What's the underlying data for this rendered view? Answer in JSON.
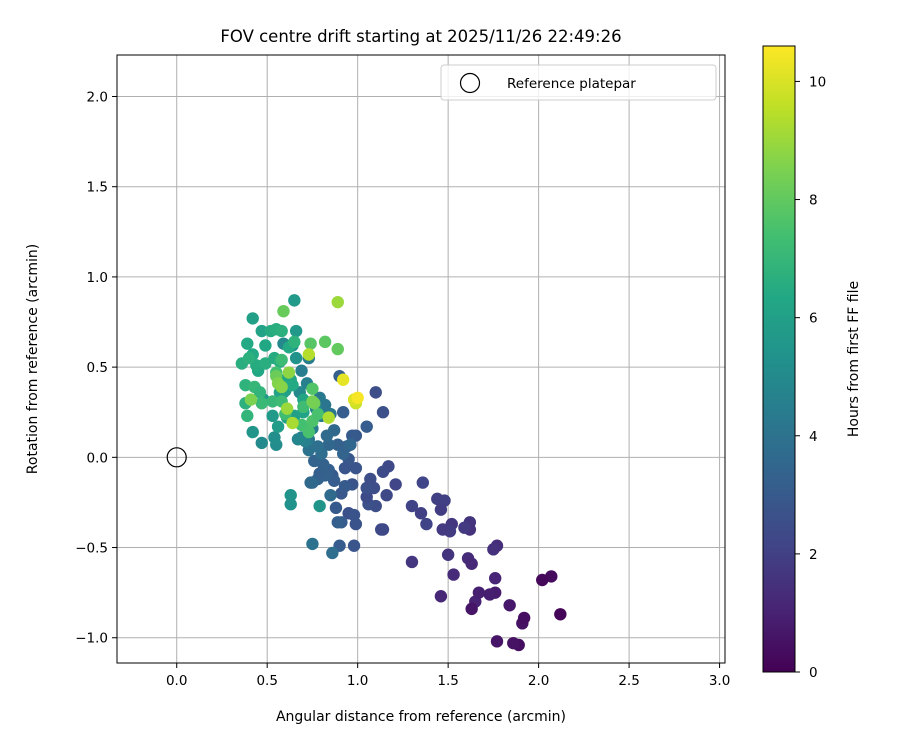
{
  "chart_data": {
    "type": "scatter",
    "title": "FOV centre drift starting at 2025/11/26 22:49:26",
    "xlabel": "Angular distance from reference (arcmin)",
    "ylabel": "Rotation from reference (arcmin)",
    "xlim": [
      -0.33,
      3.03
    ],
    "ylim": [
      -1.14,
      2.23
    ],
    "xticks": [
      0.0,
      0.5,
      1.0,
      1.5,
      2.0,
      2.5,
      3.0
    ],
    "xtick_labels": [
      "0.0",
      "0.5",
      "1.0",
      "1.5",
      "2.0",
      "2.5",
      "3.0"
    ],
    "yticks": [
      -1.0,
      -0.5,
      0.0,
      0.5,
      1.0,
      1.5,
      2.0
    ],
    "ytick_labels": [
      "−1.0",
      "−0.5",
      "0.0",
      "0.5",
      "1.0",
      "1.5",
      "2.0"
    ],
    "grid": true,
    "legend": {
      "position": "top-right",
      "label": "Reference platepar"
    },
    "reference_point": {
      "x": 0.0,
      "y": 0.0
    },
    "colorbar": {
      "label": "Hours from first FF file",
      "range": [
        0,
        10.6
      ],
      "ticks": [
        0,
        2,
        4,
        6,
        8,
        10
      ],
      "tick_labels": [
        "0",
        "2",
        "4",
        "6",
        "8",
        "10"
      ],
      "colormap": "viridis"
    },
    "series": [
      {
        "name": "FOV centre",
        "columns": [
          "x",
          "y",
          "hours"
        ],
        "points": [
          [
            2.12,
            -0.87,
            0.1
          ],
          [
            2.07,
            -0.66,
            0.3
          ],
          [
            2.02,
            -0.68,
            0.2
          ],
          [
            1.89,
            -1.04,
            0.4
          ],
          [
            1.86,
            -1.03,
            0.5
          ],
          [
            1.77,
            -1.02,
            0.6
          ],
          [
            1.91,
            -0.92,
            0.5
          ],
          [
            1.92,
            -0.89,
            0.4
          ],
          [
            1.84,
            -0.82,
            0.7
          ],
          [
            1.76,
            -0.75,
            0.8
          ],
          [
            1.73,
            -0.76,
            0.9
          ],
          [
            1.65,
            -0.8,
            1.0
          ],
          [
            1.67,
            -0.75,
            0.9
          ],
          [
            1.76,
            -0.67,
            1.1
          ],
          [
            1.63,
            -0.84,
            0.6
          ],
          [
            1.46,
            -0.77,
            1.2
          ],
          [
            1.53,
            -0.65,
            1.3
          ],
          [
            1.61,
            -0.56,
            1.3
          ],
          [
            1.63,
            -0.59,
            1.2
          ],
          [
            1.77,
            -0.49,
            1.4
          ],
          [
            1.75,
            -0.51,
            1.5
          ],
          [
            1.5,
            -0.54,
            1.6
          ],
          [
            1.3,
            -0.58,
            1.7
          ],
          [
            1.62,
            -0.36,
            1.6
          ],
          [
            1.62,
            -0.4,
            1.5
          ],
          [
            1.59,
            -0.39,
            1.8
          ],
          [
            1.52,
            -0.37,
            1.7
          ],
          [
            1.51,
            -0.41,
            1.9
          ],
          [
            1.47,
            -0.4,
            1.8
          ],
          [
            1.48,
            -0.24,
            2.0
          ],
          [
            1.46,
            -0.29,
            1.9
          ],
          [
            1.44,
            -0.23,
            2.0
          ],
          [
            1.38,
            -0.37,
            2.1
          ],
          [
            1.35,
            -0.31,
            2.0
          ],
          [
            1.3,
            -0.27,
            2.1
          ],
          [
            1.36,
            -0.14,
            2.2
          ],
          [
            1.21,
            -0.15,
            2.2
          ],
          [
            1.17,
            -0.05,
            2.3
          ],
          [
            1.14,
            -0.08,
            2.4
          ],
          [
            1.16,
            -0.21,
            2.3
          ],
          [
            1.13,
            -0.4,
            2.4
          ],
          [
            1.14,
            -0.4,
            2.3
          ],
          [
            1.1,
            -0.27,
            2.5
          ],
          [
            1.09,
            -0.17,
            2.5
          ],
          [
            1.06,
            -0.26,
            2.6
          ],
          [
            1.05,
            -0.22,
            2.4
          ],
          [
            1.05,
            -0.17,
            2.6
          ],
          [
            1.07,
            -0.12,
            2.5
          ],
          [
            0.99,
            -0.37,
            2.7
          ],
          [
            0.98,
            -0.49,
            2.8
          ],
          [
            0.95,
            -0.31,
            2.6
          ],
          [
            0.98,
            -0.32,
            2.7
          ],
          [
            0.97,
            -0.15,
            2.7
          ],
          [
            0.99,
            -0.06,
            2.8
          ],
          [
            0.95,
            -0.01,
            2.9
          ],
          [
            0.93,
            -0.06,
            2.8
          ],
          [
            0.91,
            -0.2,
            2.9
          ],
          [
            0.93,
            -0.16,
            3.0
          ],
          [
            0.88,
            -0.28,
            3.0
          ],
          [
            0.91,
            -0.36,
            3.1
          ],
          [
            0.89,
            -0.36,
            3.2
          ],
          [
            0.9,
            -0.49,
            3.1
          ],
          [
            0.86,
            -0.1,
            3.0
          ],
          [
            0.87,
            -0.13,
            3.1
          ],
          [
            0.84,
            -0.07,
            3.2
          ],
          [
            0.81,
            -0.04,
            3.3
          ],
          [
            0.78,
            -0.12,
            3.4
          ],
          [
            0.82,
            -0.1,
            3.3
          ],
          [
            0.79,
            -0.09,
            3.2
          ],
          [
            0.75,
            -0.14,
            3.5
          ],
          [
            0.76,
            -0.02,
            3.4
          ],
          [
            0.74,
            -0.14,
            3.6
          ],
          [
            0.85,
            -0.21,
            3.7
          ],
          [
            0.86,
            -0.53,
            3.8
          ],
          [
            0.75,
            -0.48,
            4.0
          ],
          [
            0.99,
            0.12,
            2.9
          ],
          [
            0.97,
            0.12,
            3.0
          ],
          [
            1.05,
            0.17,
            3.1
          ],
          [
            1.1,
            0.36,
            2.5
          ],
          [
            1.14,
            0.25,
            2.6
          ],
          [
            0.9,
            0.45,
            3.2
          ],
          [
            0.92,
            0.25,
            3.1
          ],
          [
            0.89,
            0.07,
            3.3
          ],
          [
            0.92,
            0.02,
            3.4
          ],
          [
            0.94,
            0.06,
            3.3
          ],
          [
            0.96,
            0.07,
            3.5
          ],
          [
            0.87,
            0.15,
            3.6
          ],
          [
            0.84,
            0.07,
            3.5
          ],
          [
            0.83,
            0.12,
            3.7
          ],
          [
            0.8,
            0.02,
            3.8
          ],
          [
            0.78,
            0.06,
            3.9
          ],
          [
            0.73,
            0.04,
            4.0
          ],
          [
            0.73,
            0.1,
            4.1
          ],
          [
            0.85,
            0.24,
            4.2
          ],
          [
            0.82,
            0.29,
            4.1
          ],
          [
            0.79,
            0.33,
            4.3
          ],
          [
            0.8,
            0.23,
            4.4
          ],
          [
            0.75,
            0.16,
            4.5
          ],
          [
            0.71,
            0.09,
            4.6
          ],
          [
            0.69,
            0.11,
            4.7
          ],
          [
            0.67,
            0.1,
            4.8
          ],
          [
            0.77,
            0.27,
            4.7
          ],
          [
            0.72,
            0.41,
            4.6
          ],
          [
            0.68,
            0.36,
            4.9
          ],
          [
            0.69,
            0.48,
            4.5
          ],
          [
            0.73,
            0.55,
            4.4
          ],
          [
            0.59,
            0.63,
            4.9
          ],
          [
            0.47,
            0.08,
            5.0
          ],
          [
            0.55,
            0.07,
            5.1
          ],
          [
            0.54,
            0.11,
            5.2
          ],
          [
            0.63,
            -0.26,
            5.3
          ],
          [
            0.63,
            -0.21,
            5.4
          ],
          [
            0.79,
            -0.27,
            5.5
          ],
          [
            0.59,
            0.36,
            5.3
          ],
          [
            0.66,
            0.55,
            5.4
          ],
          [
            0.64,
            0.62,
            5.5
          ],
          [
            0.66,
            0.7,
            5.6
          ],
          [
            0.42,
            0.14,
            5.5
          ],
          [
            0.48,
            0.32,
            5.6
          ],
          [
            0.53,
            0.23,
            5.7
          ],
          [
            0.56,
            0.17,
            5.8
          ],
          [
            0.61,
            0.22,
            5.9
          ],
          [
            0.65,
            0.23,
            6.0
          ],
          [
            0.7,
            0.25,
            6.1
          ],
          [
            0.7,
            0.32,
            6.2
          ],
          [
            0.6,
            0.37,
            6.0
          ],
          [
            0.57,
            0.36,
            6.1
          ],
          [
            0.57,
            0.43,
            6.2
          ],
          [
            0.63,
            0.43,
            6.3
          ],
          [
            0.64,
            0.4,
            6.4
          ],
          [
            0.45,
            0.48,
            6.3
          ],
          [
            0.42,
            0.57,
            6.4
          ],
          [
            0.44,
            0.51,
            6.5
          ],
          [
            0.49,
            0.52,
            6.6
          ],
          [
            0.54,
            0.55,
            6.5
          ],
          [
            0.57,
            0.53,
            6.6
          ],
          [
            0.62,
            0.61,
            6.4
          ],
          [
            0.65,
            0.87,
            5.7
          ],
          [
            0.42,
            0.77,
            6.0
          ],
          [
            0.47,
            0.7,
            6.1
          ],
          [
            0.49,
            0.62,
            6.3
          ],
          [
            0.39,
            0.63,
            6.4
          ],
          [
            0.52,
            0.7,
            6.5
          ],
          [
            0.55,
            0.71,
            6.6
          ],
          [
            0.58,
            0.7,
            6.7
          ],
          [
            0.65,
            0.64,
            6.8
          ],
          [
            0.36,
            0.52,
            6.6
          ],
          [
            0.4,
            0.55,
            6.7
          ],
          [
            0.38,
            0.4,
            6.8
          ],
          [
            0.38,
            0.3,
            6.7
          ],
          [
            0.39,
            0.23,
            6.9
          ],
          [
            0.43,
            0.39,
            7.0
          ],
          [
            0.46,
            0.36,
            6.9
          ],
          [
            0.47,
            0.3,
            7.1
          ],
          [
            0.53,
            0.31,
            7.0
          ],
          [
            0.58,
            0.31,
            7.2
          ],
          [
            0.6,
            0.24,
            7.3
          ],
          [
            0.58,
            0.54,
            7.2
          ],
          [
            0.55,
            0.47,
            7.4
          ],
          [
            0.7,
            0.28,
            7.3
          ],
          [
            0.69,
            0.18,
            7.4
          ],
          [
            0.73,
            0.14,
            7.5
          ],
          [
            0.75,
            0.2,
            7.6
          ],
          [
            0.75,
            0.38,
            7.7
          ],
          [
            0.78,
            0.24,
            7.5
          ],
          [
            0.74,
            0.63,
            7.8
          ],
          [
            0.82,
            0.64,
            7.9
          ],
          [
            0.89,
            0.6,
            8.0
          ],
          [
            0.59,
            0.81,
            8.1
          ],
          [
            0.55,
            0.45,
            8.2
          ],
          [
            0.76,
            0.3,
            8.3
          ],
          [
            0.75,
            0.31,
            8.4
          ],
          [
            0.41,
            0.32,
            8.5
          ],
          [
            0.56,
            0.41,
            8.6
          ],
          [
            0.58,
            0.39,
            8.7
          ],
          [
            0.62,
            0.47,
            8.8
          ],
          [
            0.61,
            0.27,
            9.0
          ],
          [
            0.64,
            0.19,
            9.2
          ],
          [
            0.84,
            0.22,
            9.3
          ],
          [
            0.73,
            0.57,
            9.4
          ],
          [
            0.89,
            0.86,
            9.0
          ],
          [
            0.99,
            0.3,
            9.8
          ],
          [
            0.98,
            0.32,
            10.0
          ],
          [
            0.92,
            0.43,
            10.2
          ],
          [
            1.0,
            0.33,
            10.5
          ]
        ]
      }
    ]
  }
}
